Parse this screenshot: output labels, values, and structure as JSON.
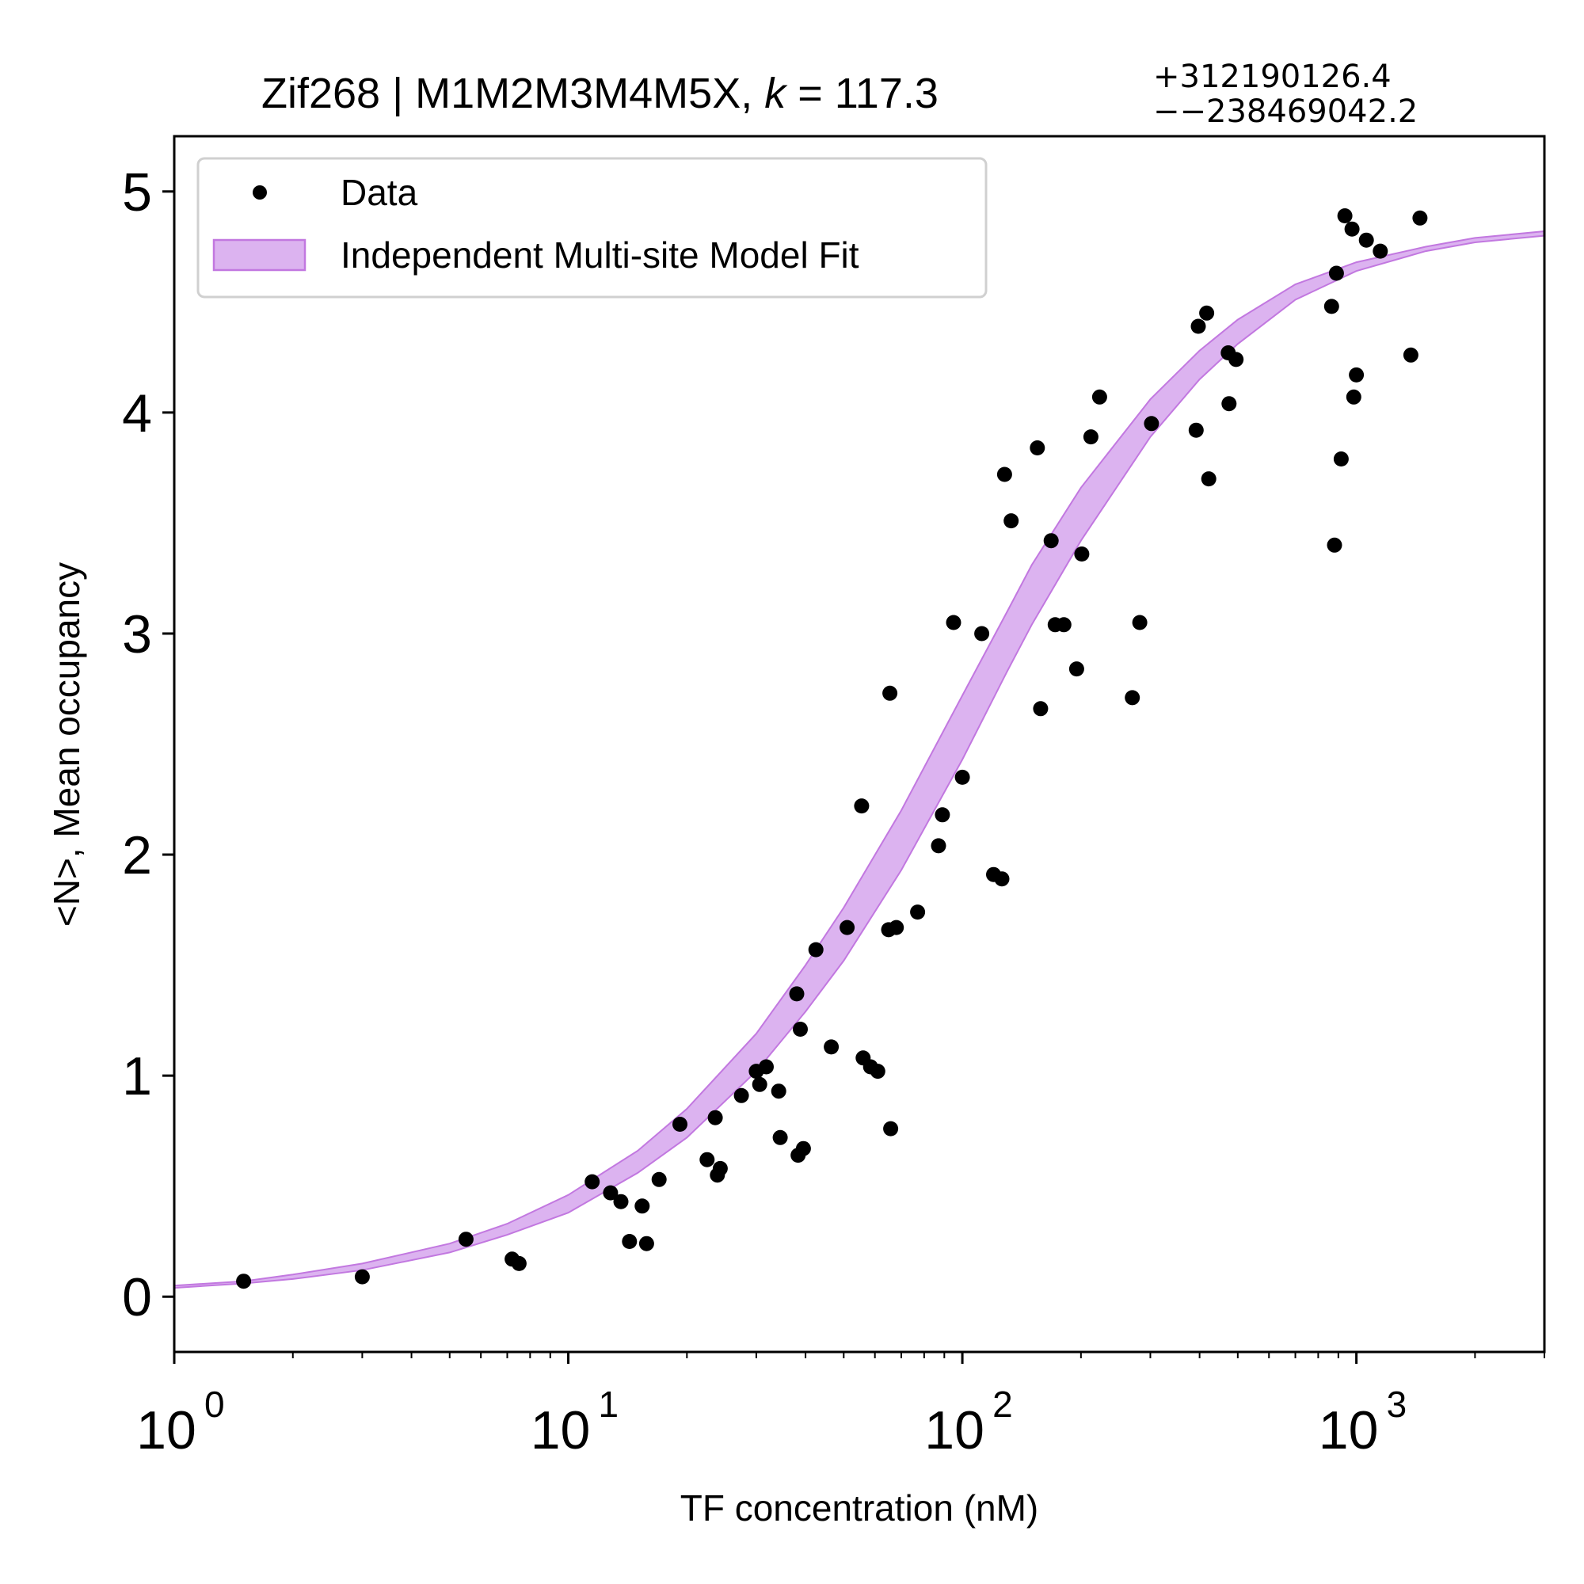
{
  "chart_data": {
    "type": "scatter",
    "title": {
      "prefix": "Zif268 | M1M2M3M4M5X, ",
      "k_symbol": "k",
      "equals": " = ",
      "value": "117.3",
      "upper": "+312190126.4",
      "lower": "−−238469042.2"
    },
    "xlabel": "TF concentration (nM)",
    "ylabel": "<N>, Mean occupancy",
    "x_scale": "log",
    "xlim": [
      1,
      3000
    ],
    "ylim": [
      -0.25,
      5.25
    ],
    "x_ticks": [
      {
        "value": 1,
        "base": "10",
        "exp": "0"
      },
      {
        "value": 10,
        "base": "10",
        "exp": "1"
      },
      {
        "value": 100,
        "base": "10",
        "exp": "2"
      },
      {
        "value": 1000,
        "base": "10",
        "exp": "3"
      }
    ],
    "y_ticks": [
      {
        "value": 0,
        "label": "0"
      },
      {
        "value": 1,
        "label": "1"
      },
      {
        "value": 2,
        "label": "2"
      },
      {
        "value": 3,
        "label": "3"
      },
      {
        "value": 4,
        "label": "4"
      },
      {
        "value": 5,
        "label": "5"
      }
    ],
    "grid": false,
    "legend_position": "top-left",
    "legend": {
      "data_label": "Data",
      "fit_label": "Independent Multi-site Model Fit"
    },
    "colors": {
      "points": "#000000",
      "band_fill": "#dcb3f0",
      "band_edge": "#c278e0"
    },
    "series": [
      {
        "name": "Data",
        "kind": "points",
        "points": [
          {
            "x": 1.5,
            "y": 0.07
          },
          {
            "x": 3.0,
            "y": 0.09
          },
          {
            "x": 5.5,
            "y": 0.26
          },
          {
            "x": 7.2,
            "y": 0.17
          },
          {
            "x": 7.5,
            "y": 0.15
          },
          {
            "x": 11.5,
            "y": 0.52
          },
          {
            "x": 12.8,
            "y": 0.47
          },
          {
            "x": 13.6,
            "y": 0.43
          },
          {
            "x": 14.3,
            "y": 0.25
          },
          {
            "x": 15.4,
            "y": 0.41
          },
          {
            "x": 15.8,
            "y": 0.24
          },
          {
            "x": 17.0,
            "y": 0.53
          },
          {
            "x": 19.2,
            "y": 0.78
          },
          {
            "x": 22.5,
            "y": 0.62
          },
          {
            "x": 23.6,
            "y": 0.81
          },
          {
            "x": 23.9,
            "y": 0.55
          },
          {
            "x": 24.3,
            "y": 0.58
          },
          {
            "x": 27.5,
            "y": 0.91
          },
          {
            "x": 30.0,
            "y": 1.02
          },
          {
            "x": 30.6,
            "y": 0.96
          },
          {
            "x": 31.8,
            "y": 1.04
          },
          {
            "x": 34.2,
            "y": 0.93
          },
          {
            "x": 34.5,
            "y": 0.72
          },
          {
            "x": 38.0,
            "y": 1.37
          },
          {
            "x": 38.3,
            "y": 0.64
          },
          {
            "x": 38.8,
            "y": 1.21
          },
          {
            "x": 39.5,
            "y": 0.67
          },
          {
            "x": 42.5,
            "y": 1.57
          },
          {
            "x": 46.5,
            "y": 1.13
          },
          {
            "x": 51.0,
            "y": 1.67
          },
          {
            "x": 55.5,
            "y": 2.22
          },
          {
            "x": 56.0,
            "y": 1.08
          },
          {
            "x": 58.5,
            "y": 1.04
          },
          {
            "x": 61.0,
            "y": 1.02
          },
          {
            "x": 65.5,
            "y": 2.73
          },
          {
            "x": 65.8,
            "y": 0.76
          },
          {
            "x": 65.0,
            "y": 1.66
          },
          {
            "x": 68.0,
            "y": 1.67
          },
          {
            "x": 77.0,
            "y": 1.74
          },
          {
            "x": 87.0,
            "y": 2.04
          },
          {
            "x": 89.0,
            "y": 2.18
          },
          {
            "x": 95.0,
            "y": 3.05
          },
          {
            "x": 100.0,
            "y": 2.35
          },
          {
            "x": 112.0,
            "y": 3.0
          },
          {
            "x": 120.0,
            "y": 1.91
          },
          {
            "x": 126.0,
            "y": 1.89
          },
          {
            "x": 128.0,
            "y": 3.72
          },
          {
            "x": 133.0,
            "y": 3.51
          },
          {
            "x": 155.0,
            "y": 3.84
          },
          {
            "x": 158.0,
            "y": 2.66
          },
          {
            "x": 168.0,
            "y": 3.42
          },
          {
            "x": 172.0,
            "y": 3.04
          },
          {
            "x": 181.0,
            "y": 3.04
          },
          {
            "x": 195.0,
            "y": 2.84
          },
          {
            "x": 201.0,
            "y": 3.36
          },
          {
            "x": 212.0,
            "y": 3.89
          },
          {
            "x": 223.0,
            "y": 4.07
          },
          {
            "x": 270.0,
            "y": 2.71
          },
          {
            "x": 282.0,
            "y": 3.05
          },
          {
            "x": 302.0,
            "y": 3.95
          },
          {
            "x": 392.0,
            "y": 3.92
          },
          {
            "x": 397.0,
            "y": 4.39
          },
          {
            "x": 417.0,
            "y": 4.45
          },
          {
            "x": 422.0,
            "y": 3.7
          },
          {
            "x": 473.0,
            "y": 4.27
          },
          {
            "x": 475.0,
            "y": 4.04
          },
          {
            "x": 495.0,
            "y": 4.24
          },
          {
            "x": 865.0,
            "y": 4.48
          },
          {
            "x": 880.0,
            "y": 3.4
          },
          {
            "x": 890.0,
            "y": 4.63
          },
          {
            "x": 915.0,
            "y": 3.79
          },
          {
            "x": 935.0,
            "y": 4.89
          },
          {
            "x": 975.0,
            "y": 4.83
          },
          {
            "x": 985.0,
            "y": 4.07
          },
          {
            "x": 1000.0,
            "y": 4.17
          },
          {
            "x": 1060.0,
            "y": 4.78
          },
          {
            "x": 1150.0,
            "y": 4.73
          },
          {
            "x": 1375.0,
            "y": 4.26
          },
          {
            "x": 1450.0,
            "y": 4.88
          }
        ]
      },
      {
        "name": "Independent Multi-site Model Fit",
        "kind": "band",
        "x": [
          1,
          1.5,
          2,
          3,
          5,
          7,
          10,
          15,
          20,
          30,
          40,
          50,
          70,
          100,
          130,
          150,
          200,
          300,
          400,
          500,
          700,
          1000,
          1500,
          2000,
          3000
        ],
        "lower": [
          0.04,
          0.06,
          0.08,
          0.12,
          0.2,
          0.28,
          0.38,
          0.56,
          0.72,
          1.02,
          1.29,
          1.52,
          1.93,
          2.43,
          2.83,
          3.04,
          3.42,
          3.89,
          4.15,
          4.31,
          4.51,
          4.64,
          4.73,
          4.77,
          4.8
        ],
        "upper": [
          0.05,
          0.07,
          0.1,
          0.15,
          0.24,
          0.33,
          0.46,
          0.66,
          0.85,
          1.19,
          1.5,
          1.76,
          2.2,
          2.72,
          3.1,
          3.31,
          3.66,
          4.06,
          4.28,
          4.42,
          4.58,
          4.68,
          4.75,
          4.79,
          4.82
        ]
      }
    ]
  }
}
